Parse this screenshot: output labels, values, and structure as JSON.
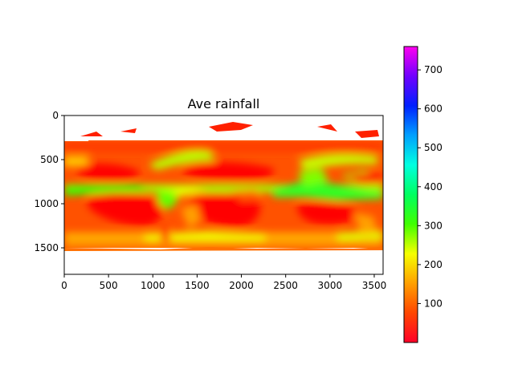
{
  "chart_data": {
    "type": "heatmap",
    "title": "Ave rainfall",
    "xlabel": "",
    "ylabel": "",
    "x_ticks": [
      0,
      500,
      1000,
      1500,
      2000,
      2500,
      3000,
      3500
    ],
    "y_ticks": [
      0,
      500,
      1000,
      1500
    ],
    "xlim": [
      0,
      3600
    ],
    "ylim": [
      1800,
      0
    ],
    "colorbar": {
      "colormap": "gist_rainbow",
      "vmin": 0,
      "vmax": 760,
      "ticks": [
        100,
        200,
        300,
        400,
        500,
        600,
        700
      ]
    },
    "data_rows": [
      0,
      1800
    ],
    "valid_rows": [
      300,
      1500
    ],
    "grid": false,
    "colors": {
      "low": "#ff0000",
      "mid_low": "#ff8000",
      "mid": "#ffff00",
      "mid_high": "#00ff00",
      "high": "#0000ff",
      "max": "#ff00ff"
    }
  }
}
